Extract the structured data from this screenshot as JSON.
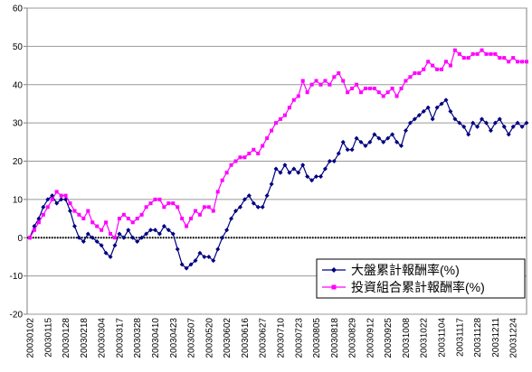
{
  "chart_data": {
    "type": "line",
    "categories": [
      "20030102",
      null,
      null,
      null,
      "20030115",
      null,
      null,
      null,
      "20030128",
      null,
      null,
      null,
      "20030218",
      null,
      null,
      null,
      "20030304",
      null,
      null,
      null,
      "20030317",
      null,
      null,
      null,
      "20030328",
      null,
      null,
      null,
      "20030410",
      null,
      null,
      null,
      "20030423",
      null,
      null,
      null,
      "20030507",
      null,
      null,
      null,
      "20030520",
      null,
      null,
      null,
      "20030602",
      null,
      null,
      null,
      "20030616",
      null,
      null,
      null,
      "20030627",
      null,
      null,
      null,
      "20030710",
      null,
      null,
      null,
      "20030723",
      null,
      null,
      null,
      "20030805",
      null,
      null,
      null,
      "20030818",
      null,
      null,
      null,
      "20030829",
      null,
      null,
      null,
      "20030912",
      null,
      null,
      null,
      "20030925",
      null,
      null,
      null,
      "20031008",
      null,
      null,
      null,
      "20031022",
      null,
      null,
      null,
      "20031104",
      null,
      null,
      null,
      "20031117",
      null,
      null,
      null,
      "20031128",
      null,
      null,
      null,
      "20031211",
      null,
      null,
      null,
      "20031224",
      null,
      null,
      null
    ],
    "series": [
      {
        "name": "大盤累計報酬率(%)",
        "color": "#000080",
        "marker": "diamond",
        "values": [
          0,
          3,
          5,
          8,
          10,
          11,
          9,
          10,
          10,
          7,
          3,
          0,
          -1,
          1,
          0,
          -1,
          -2,
          -4,
          -5,
          -2,
          1,
          0,
          2,
          0,
          -1,
          0,
          1,
          2,
          2,
          1,
          3,
          2,
          1,
          -3,
          -7,
          -8,
          -7,
          -6,
          -4,
          -5,
          -5,
          -6,
          -3,
          0,
          2,
          5,
          7,
          8,
          10,
          11,
          9,
          8,
          8,
          11,
          14,
          18,
          17,
          19,
          17,
          18,
          17,
          19,
          16,
          15,
          16,
          16,
          18,
          20,
          20,
          22,
          25,
          23,
          23,
          26,
          25,
          24,
          25,
          27,
          26,
          25,
          26,
          27,
          25,
          24,
          28,
          30,
          31,
          32,
          33,
          34,
          31,
          34,
          35,
          36,
          33,
          31,
          30,
          29,
          27,
          30,
          29,
          31,
          30,
          28,
          30,
          31,
          29,
          27,
          29,
          30,
          29,
          30
        ]
      },
      {
        "name": "投資組合累計報酬率(%)",
        "color": "#ff00ff",
        "marker": "square",
        "values": [
          0,
          2,
          4,
          6,
          8,
          10,
          12,
          11,
          11,
          9,
          7,
          6,
          5,
          7,
          4,
          3,
          2,
          4,
          1,
          0,
          5,
          6,
          5,
          4,
          5,
          6,
          8,
          9,
          10,
          10,
          8,
          9,
          9,
          8,
          5,
          3,
          5,
          7,
          6,
          8,
          8,
          7,
          12,
          15,
          17,
          19,
          20,
          21,
          21,
          22,
          23,
          22,
          24,
          26,
          28,
          30,
          31,
          32,
          34,
          36,
          37,
          41,
          38,
          40,
          41,
          40,
          41,
          40,
          42,
          43,
          41,
          38,
          39,
          40,
          38,
          39,
          39,
          39,
          38,
          37,
          38,
          39,
          37,
          39,
          41,
          42,
          43,
          43,
          44,
          46,
          45,
          44,
          44,
          46,
          45,
          49,
          48,
          47,
          47,
          48,
          48,
          49,
          48,
          48,
          48,
          47,
          47,
          46,
          47,
          46,
          46,
          46
        ]
      }
    ],
    "ylim": [
      -20,
      60
    ],
    "yticks": [
      -20,
      -10,
      0,
      10,
      20,
      30,
      40,
      50,
      60
    ],
    "grid": true,
    "legend": "lower right"
  }
}
